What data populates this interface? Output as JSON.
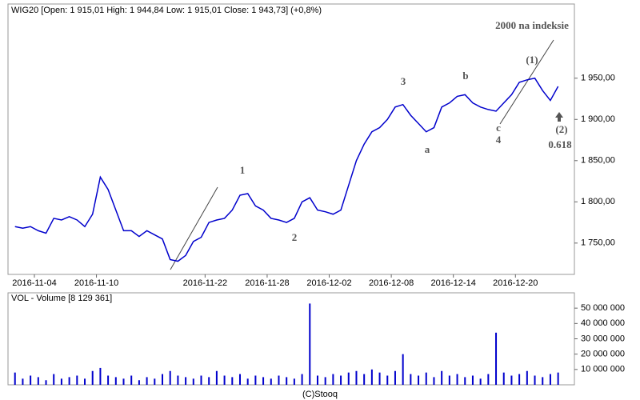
{
  "source": "(C)Stooq",
  "chart_data": [
    {
      "type": "line",
      "title": "WIG20 [Open: 1 915,01 High: 1 944,84 Low: 1 915,01 Close: 1 943,73] (+0,8%)",
      "color": "#0000cc",
      "x": [
        -1.25,
        -0.75,
        -0.25,
        0.25,
        0.75,
        1.25,
        1.75,
        2.25,
        2.75,
        3.25,
        3.75,
        4.25,
        4.75,
        5.25,
        5.75,
        6.25,
        6.75,
        7.25,
        7.75,
        8.25,
        8.75,
        9.25,
        9.75,
        10.25,
        10.75,
        11.25,
        11.75,
        12.25,
        12.75,
        13.25,
        13.75,
        14.25,
        14.75,
        15.25,
        15.75,
        16.25,
        16.75,
        17.25,
        17.75,
        18.25,
        18.75,
        19.25,
        19.75,
        20.25,
        20.75,
        21.25,
        21.75,
        22.25,
        22.75,
        23.25,
        23.75,
        24.25,
        24.75,
        25.25,
        25.75,
        26.25,
        26.75,
        27.25,
        27.75,
        28.25,
        28.75,
        29.25,
        29.75,
        30.25,
        30.75,
        31.25,
        31.75,
        32.25,
        32.75,
        33.25,
        33.75
      ],
      "values": [
        1770,
        1768,
        1770,
        1765,
        1762,
        1780,
        1778,
        1782,
        1778,
        1770,
        1785,
        1830,
        1815,
        1790,
        1765,
        1765,
        1758,
        1765,
        1760,
        1755,
        1730,
        1728,
        1735,
        1752,
        1757,
        1775,
        1778,
        1780,
        1790,
        1808,
        1810,
        1795,
        1790,
        1780,
        1778,
        1775,
        1780,
        1800,
        1805,
        1790,
        1788,
        1785,
        1790,
        1820,
        1850,
        1870,
        1885,
        1890,
        1900,
        1915,
        1918,
        1905,
        1895,
        1885,
        1890,
        1915,
        1920,
        1928,
        1930,
        1920,
        1915,
        1912,
        1910,
        1920,
        1930,
        1945,
        1948,
        1950,
        1935,
        1923,
        1940
      ],
      "xlim": [
        -1.7,
        34.8
      ],
      "xticks": [
        {
          "value": 0,
          "label": "2016-11-04"
        },
        {
          "value": 4,
          "label": "2016-11-10"
        },
        {
          "value": 11,
          "label": "2016-11-22"
        },
        {
          "value": 15,
          "label": "2016-11-28"
        },
        {
          "value": 19,
          "label": "2016-12-02"
        },
        {
          "value": 23,
          "label": "2016-12-08"
        },
        {
          "value": 27,
          "label": "2016-12-14"
        },
        {
          "value": 31,
          "label": "2016-12-20"
        }
      ],
      "ylim": [
        1712,
        2040
      ],
      "yticks": [
        {
          "value": 1750,
          "label": "1 750,00"
        },
        {
          "value": 1800,
          "label": "1 800,00"
        },
        {
          "value": 1850,
          "label": "1 850,00"
        },
        {
          "value": 1900,
          "label": "1 900,00"
        },
        {
          "value": 1950,
          "label": "1 950,00"
        }
      ],
      "annotations": [
        "2000 na indeksie",
        "1",
        "2",
        "3",
        "a",
        "b",
        "c",
        "4",
        "(1)",
        "(2)",
        "0.618"
      ]
    },
    {
      "type": "bar",
      "title": "VOL - Volume [8 129 361]",
      "color": "#0000cc",
      "x": [
        -1.25,
        -0.75,
        -0.25,
        0.25,
        0.75,
        1.25,
        1.75,
        2.25,
        2.75,
        3.25,
        3.75,
        4.25,
        4.75,
        5.25,
        5.75,
        6.25,
        6.75,
        7.25,
        7.75,
        8.25,
        8.75,
        9.25,
        9.75,
        10.25,
        10.75,
        11.25,
        11.75,
        12.25,
        12.75,
        13.25,
        13.75,
        14.25,
        14.75,
        15.25,
        15.75,
        16.25,
        16.75,
        17.25,
        17.75,
        18.25,
        18.75,
        19.25,
        19.75,
        20.25,
        20.75,
        21.25,
        21.75,
        22.25,
        22.75,
        23.25,
        23.75,
        24.25,
        24.75,
        25.25,
        25.75,
        26.25,
        26.75,
        27.25,
        27.75,
        28.25,
        28.75,
        29.25,
        29.75,
        30.25,
        30.75,
        31.25,
        31.75,
        32.25,
        32.75,
        33.25,
        33.75
      ],
      "values": [
        8000000,
        4000000,
        6000000,
        5000000,
        3000000,
        7000000,
        4000000,
        5000000,
        6000000,
        4000000,
        9000000,
        11000000,
        6000000,
        5000000,
        4000000,
        6000000,
        3000000,
        5000000,
        4000000,
        7000000,
        9000000,
        6000000,
        5000000,
        4000000,
        6000000,
        5000000,
        9000000,
        6000000,
        5000000,
        7000000,
        4000000,
        6000000,
        5000000,
        4000000,
        6000000,
        5000000,
        4000000,
        7000000,
        53000000,
        6000000,
        5000000,
        7000000,
        6000000,
        8000000,
        9000000,
        7000000,
        10000000,
        8000000,
        6000000,
        9000000,
        20000000,
        7000000,
        6000000,
        8000000,
        5000000,
        9000000,
        6000000,
        7000000,
        5000000,
        6000000,
        4000000,
        7000000,
        34000000,
        8000000,
        6000000,
        7000000,
        9000000,
        6000000,
        5000000,
        7000000,
        8000000
      ],
      "ylim": [
        0,
        60000000
      ],
      "yticks": [
        {
          "value": 10000000,
          "label": "10 000 000"
        },
        {
          "value": 20000000,
          "label": "20 000 000"
        },
        {
          "value": 30000000,
          "label": "30 000 000"
        },
        {
          "value": 40000000,
          "label": "40 000 000"
        },
        {
          "value": 50000000,
          "label": "50 000 000"
        }
      ]
    }
  ]
}
